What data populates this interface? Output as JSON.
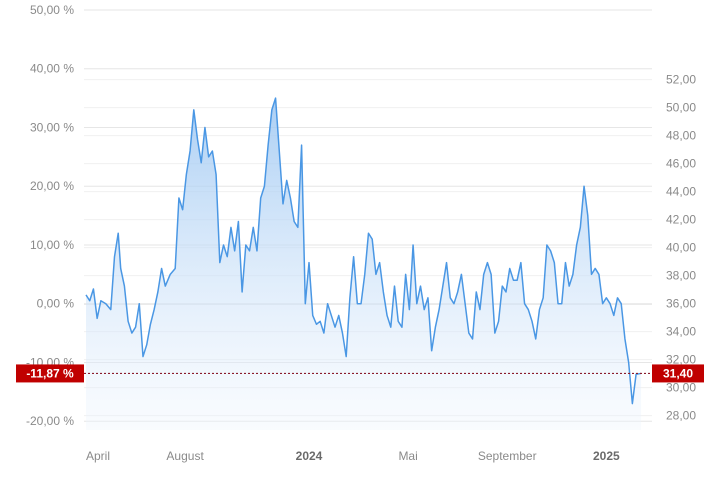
{
  "chart_data": {
    "type": "area",
    "y_left": {
      "ticks": [
        50,
        40,
        30,
        20,
        10,
        0,
        -10,
        -20
      ],
      "tick_labels": [
        "50,00 %",
        "40,00 %",
        "30,00 %",
        "20,00 %",
        "10,00 %",
        "0,00 %",
        "-10,00 %",
        "-20,00 %"
      ],
      "range": [
        -21.5,
        50
      ]
    },
    "y_right": {
      "ticks": [
        52,
        50,
        48,
        46,
        44,
        42,
        40,
        38,
        36,
        34,
        32,
        30,
        28
      ],
      "tick_labels": [
        "52,00",
        "50,00",
        "48,00",
        "46,00",
        "44,00",
        "42,00",
        "40,00",
        "38,00",
        "36,00",
        "34,00",
        "32,00",
        "30,00",
        "28,00"
      ],
      "range": [
        26.97,
        56.97
      ],
      "baseline_price": 35.64
    },
    "x_axis": {
      "labels": [
        {
          "text": "April",
          "month_index": 0,
          "bold": false
        },
        {
          "text": "August",
          "month_index": 4,
          "bold": false
        },
        {
          "text": "2024",
          "month_index": 9,
          "bold": true
        },
        {
          "text": "Mai",
          "month_index": 13,
          "bold": false
        },
        {
          "text": "September",
          "month_index": 17,
          "bold": false
        },
        {
          "text": "2025",
          "month_index": 21,
          "bold": true
        }
      ],
      "start": "2023-04",
      "end": "2025-03"
    },
    "series": [
      {
        "color": "#4a97e4",
        "points": [
          [
            0.0,
            1.5
          ],
          [
            0.15,
            0.5
          ],
          [
            0.3,
            2.5
          ],
          [
            0.45,
            -2.5
          ],
          [
            0.6,
            0.5
          ],
          [
            0.8,
            0.0
          ],
          [
            1.0,
            -1.0
          ],
          [
            1.15,
            8.0
          ],
          [
            1.3,
            12.0
          ],
          [
            1.4,
            6.0
          ],
          [
            1.55,
            3.0
          ],
          [
            1.7,
            -3.0
          ],
          [
            1.85,
            -5.0
          ],
          [
            2.0,
            -4.0
          ],
          [
            2.15,
            0.0
          ],
          [
            2.3,
            -9.0
          ],
          [
            2.45,
            -7.0
          ],
          [
            2.6,
            -3.5
          ],
          [
            2.75,
            -1.0
          ],
          [
            2.9,
            2.0
          ],
          [
            3.05,
            6.0
          ],
          [
            3.2,
            3.0
          ],
          [
            3.4,
            5.0
          ],
          [
            3.6,
            6.0
          ],
          [
            3.75,
            18.0
          ],
          [
            3.9,
            16.0
          ],
          [
            4.05,
            22.0
          ],
          [
            4.2,
            26.0
          ],
          [
            4.35,
            33.0
          ],
          [
            4.5,
            28.0
          ],
          [
            4.65,
            24.0
          ],
          [
            4.8,
            30.0
          ],
          [
            4.95,
            25.0
          ],
          [
            5.1,
            26.0
          ],
          [
            5.25,
            22.0
          ],
          [
            5.4,
            7.0
          ],
          [
            5.55,
            10.0
          ],
          [
            5.7,
            8.0
          ],
          [
            5.85,
            13.0
          ],
          [
            6.0,
            9.0
          ],
          [
            6.15,
            14.0
          ],
          [
            6.3,
            2.0
          ],
          [
            6.45,
            10.0
          ],
          [
            6.6,
            9.0
          ],
          [
            6.75,
            13.0
          ],
          [
            6.9,
            9.0
          ],
          [
            7.05,
            18.0
          ],
          [
            7.2,
            20.0
          ],
          [
            7.35,
            27.0
          ],
          [
            7.5,
            33.0
          ],
          [
            7.65,
            35.0
          ],
          [
            7.8,
            26.0
          ],
          [
            7.95,
            17.0
          ],
          [
            8.1,
            21.0
          ],
          [
            8.25,
            18.0
          ],
          [
            8.4,
            14.0
          ],
          [
            8.55,
            13.0
          ],
          [
            8.7,
            27.0
          ],
          [
            8.85,
            0.0
          ],
          [
            9.0,
            7.0
          ],
          [
            9.15,
            -2.0
          ],
          [
            9.3,
            -3.5
          ],
          [
            9.45,
            -3.0
          ],
          [
            9.6,
            -5.0
          ],
          [
            9.75,
            0.0
          ],
          [
            9.9,
            -2.0
          ],
          [
            10.05,
            -4.0
          ],
          [
            10.2,
            -2.0
          ],
          [
            10.35,
            -5.0
          ],
          [
            10.5,
            -9.0
          ],
          [
            10.65,
            1.0
          ],
          [
            10.8,
            8.0
          ],
          [
            10.95,
            0.0
          ],
          [
            11.1,
            0.0
          ],
          [
            11.25,
            5.0
          ],
          [
            11.4,
            12.0
          ],
          [
            11.55,
            11.0
          ],
          [
            11.7,
            5.0
          ],
          [
            11.85,
            7.0
          ],
          [
            12.0,
            2.0
          ],
          [
            12.15,
            -2.0
          ],
          [
            12.3,
            -4.0
          ],
          [
            12.45,
            3.0
          ],
          [
            12.6,
            -3.0
          ],
          [
            12.75,
            -4.0
          ],
          [
            12.9,
            5.0
          ],
          [
            13.05,
            -1.0
          ],
          [
            13.2,
            10.0
          ],
          [
            13.35,
            0.0
          ],
          [
            13.5,
            3.0
          ],
          [
            13.65,
            -1.0
          ],
          [
            13.8,
            1.0
          ],
          [
            13.95,
            -8.0
          ],
          [
            14.1,
            -4.0
          ],
          [
            14.25,
            -1.0
          ],
          [
            14.4,
            3.0
          ],
          [
            14.55,
            7.0
          ],
          [
            14.7,
            1.0
          ],
          [
            14.85,
            0.0
          ],
          [
            15.0,
            2.0
          ],
          [
            15.15,
            5.0
          ],
          [
            15.3,
            0.0
          ],
          [
            15.45,
            -5.0
          ],
          [
            15.6,
            -6.0
          ],
          [
            15.75,
            2.0
          ],
          [
            15.9,
            -1.0
          ],
          [
            16.05,
            5.0
          ],
          [
            16.2,
            7.0
          ],
          [
            16.35,
            5.0
          ],
          [
            16.5,
            -5.0
          ],
          [
            16.65,
            -3.0
          ],
          [
            16.8,
            3.0
          ],
          [
            16.95,
            2.0
          ],
          [
            17.1,
            6.0
          ],
          [
            17.25,
            4.0
          ],
          [
            17.4,
            4.0
          ],
          [
            17.55,
            7.0
          ],
          [
            17.7,
            0.0
          ],
          [
            17.85,
            -1.0
          ],
          [
            18.0,
            -3.0
          ],
          [
            18.15,
            -6.0
          ],
          [
            18.3,
            -1.0
          ],
          [
            18.45,
            1.0
          ],
          [
            18.6,
            10.0
          ],
          [
            18.75,
            9.0
          ],
          [
            18.9,
            7.0
          ],
          [
            19.05,
            0.0
          ],
          [
            19.2,
            0.0
          ],
          [
            19.35,
            7.0
          ],
          [
            19.5,
            3.0
          ],
          [
            19.65,
            5.0
          ],
          [
            19.8,
            10.0
          ],
          [
            19.95,
            13.0
          ],
          [
            20.1,
            20.0
          ],
          [
            20.25,
            15.0
          ],
          [
            20.4,
            5.0
          ],
          [
            20.55,
            6.0
          ],
          [
            20.7,
            5.0
          ],
          [
            20.85,
            0.0
          ],
          [
            21.0,
            1.0
          ],
          [
            21.15,
            0.0
          ],
          [
            21.3,
            -2.0
          ],
          [
            21.45,
            1.0
          ],
          [
            21.6,
            0.0
          ],
          [
            21.75,
            -6.0
          ],
          [
            21.9,
            -10.0
          ],
          [
            22.05,
            -17.0
          ],
          [
            22.2,
            -12.0
          ],
          [
            22.4,
            -11.87
          ]
        ]
      }
    ],
    "last_value_pct": "-11,87 %",
    "last_value_price": "31,40",
    "colors": {
      "line": "#4a97e4",
      "fill_top": "#9cc6f2",
      "fill_bottom": "#eef5fd",
      "grid": "#e6e6e6",
      "zero_line": "#9a9a9a",
      "marker": "#c00000",
      "last_line": "#8a1c2c"
    }
  }
}
